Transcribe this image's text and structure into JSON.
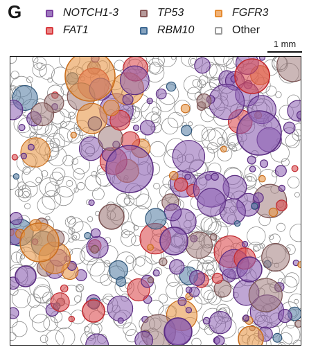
{
  "panel_letter": "G",
  "legend": [
    {
      "label": "NOTCH1-3",
      "color": "#7b3fa0",
      "fill": "#9d79bd",
      "italic": true
    },
    {
      "label": "TP53",
      "color": "#8a5a5a",
      "fill": "#b69a9a",
      "italic": true
    },
    {
      "label": "FGFR3",
      "color": "#e58a2e",
      "fill": "#f0b278",
      "italic": true
    },
    {
      "label": "FAT1",
      "color": "#d9393e",
      "fill": "#e98585",
      "italic": true
    },
    {
      "label": "RBM10",
      "color": "#3f6a93",
      "fill": "#86a3bf",
      "italic": true
    },
    {
      "label": "Other",
      "color": "#9a9a9a",
      "fill": "#ffffff",
      "italic": false
    }
  ],
  "scale_bar": {
    "label": "1 mm"
  },
  "colors": {
    "notch": "#8a5db0",
    "notch_dark": "#5b2d82",
    "tp53": "#a07c7c",
    "fgfr3": "#e8974a",
    "fat1": "#dc4f52",
    "rbm10": "#5d84a8",
    "other": "#8c8c8c"
  }
}
